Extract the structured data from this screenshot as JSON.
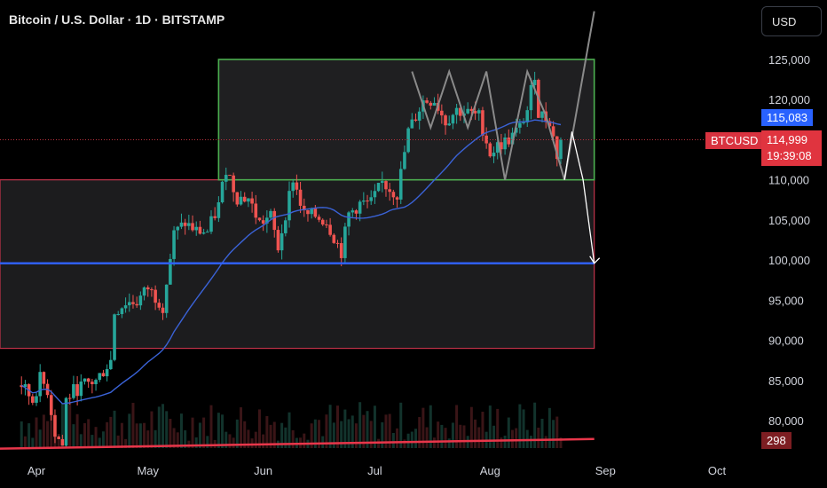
{
  "title": "Bitcoin / U.S. Dollar · 1D · BITSTAMP",
  "currency_button": "USD",
  "price_tags": {
    "ma_value": "115,083",
    "symbol": "BTCUSD",
    "last_price": "114,999",
    "countdown": "19:39:08",
    "volume": "298"
  },
  "colors": {
    "up": "#26a69a",
    "down": "#ef5350",
    "ma": "#3a62d6",
    "support_line": "#2f5ff5",
    "green_box": "#4caf50",
    "red_box": "#c2334a",
    "path": "#8a8a8a"
  },
  "chart_data": {
    "type": "candlestick",
    "title": "Bitcoin / U.S. Dollar · 1D · BITSTAMP",
    "y_ticks": [
      "125,000",
      "120,000",
      "115,000",
      "110,000",
      "105,000",
      "100,000",
      "95,000",
      "90,000",
      "85,000",
      "80,000"
    ],
    "x_ticks": [
      "Apr",
      "May",
      "Jun",
      "Jul",
      "Aug",
      "Sep",
      "Oct"
    ],
    "ylim": [
      76000,
      131000
    ],
    "last_price": 114999,
    "moving_average_last": 115083,
    "closes": [
      {
        "date": "2025-03-28",
        "close": 84400
      },
      {
        "date": "2025-03-31",
        "close": 82500
      },
      {
        "date": "2025-04-02",
        "close": 85200
      },
      {
        "date": "2025-04-04",
        "close": 83800
      },
      {
        "date": "2025-04-06",
        "close": 78500
      },
      {
        "date": "2025-04-08",
        "close": 76900
      },
      {
        "date": "2025-04-09",
        "close": 82600
      },
      {
        "date": "2025-04-11",
        "close": 83700
      },
      {
        "date": "2025-04-14",
        "close": 84500
      },
      {
        "date": "2025-04-17",
        "close": 84900
      },
      {
        "date": "2025-04-21",
        "close": 87500
      },
      {
        "date": "2025-04-22",
        "close": 93500
      },
      {
        "date": "2025-04-25",
        "close": 94700
      },
      {
        "date": "2025-04-28",
        "close": 94800
      },
      {
        "date": "2025-05-01",
        "close": 96500
      },
      {
        "date": "2025-05-05",
        "close": 94300
      },
      {
        "date": "2025-05-08",
        "close": 103200
      },
      {
        "date": "2025-05-11",
        "close": 104600
      },
      {
        "date": "2025-05-14",
        "close": 103600
      },
      {
        "date": "2025-05-17",
        "close": 103500
      },
      {
        "date": "2025-05-20",
        "close": 106800
      },
      {
        "date": "2025-05-22",
        "close": 111500
      },
      {
        "date": "2025-05-25",
        "close": 107800
      },
      {
        "date": "2025-05-28",
        "close": 107700
      },
      {
        "date": "2025-05-31",
        "close": 104600
      },
      {
        "date": "2025-06-03",
        "close": 105400
      },
      {
        "date": "2025-06-05",
        "close": 101500
      },
      {
        "date": "2025-06-09",
        "close": 110200
      },
      {
        "date": "2025-06-12",
        "close": 105600
      },
      {
        "date": "2025-06-15",
        "close": 105500
      },
      {
        "date": "2025-06-18",
        "close": 104800
      },
      {
        "date": "2025-06-22",
        "close": 101000
      },
      {
        "date": "2025-06-24",
        "close": 105700
      },
      {
        "date": "2025-06-27",
        "close": 107000
      },
      {
        "date": "2025-06-30",
        "close": 107100
      },
      {
        "date": "2025-07-03",
        "close": 109600
      },
      {
        "date": "2025-07-07",
        "close": 108200
      },
      {
        "date": "2025-07-10",
        "close": 116000
      },
      {
        "date": "2025-07-14",
        "close": 119800
      },
      {
        "date": "2025-07-17",
        "close": 120000
      },
      {
        "date": "2025-07-20",
        "close": 117300
      },
      {
        "date": "2025-07-23",
        "close": 118700
      },
      {
        "date": "2025-07-26",
        "close": 118300
      },
      {
        "date": "2025-07-29",
        "close": 117900
      },
      {
        "date": "2025-08-01",
        "close": 113300
      },
      {
        "date": "2025-08-03",
        "close": 114200
      },
      {
        "date": "2025-08-06",
        "close": 115000
      },
      {
        "date": "2025-08-09",
        "close": 116500
      },
      {
        "date": "2025-08-11",
        "close": 118700
      },
      {
        "date": "2025-08-13",
        "close": 123300
      },
      {
        "date": "2025-08-14",
        "close": 118300
      },
      {
        "date": "2025-08-17",
        "close": 117400
      },
      {
        "date": "2025-08-19",
        "close": 113000
      },
      {
        "date": "2025-08-20",
        "close": 114999
      }
    ],
    "annotations": {
      "green_box": {
        "from": "2025-05-20",
        "to": "2025-08-29",
        "y1": 110000,
        "y2": 125000
      },
      "red_box": {
        "from": "2025-03-15",
        "to": "2025-08-29",
        "y1": 89000,
        "y2": 110000
      },
      "support_line": {
        "y_start": 99600,
        "y_end": 99600
      },
      "bottom_line": {
        "y_start": 76500,
        "y_end": 77700
      },
      "projected_path": [
        [
          "2025-08-21",
          110000
        ],
        [
          "2025-08-23",
          116000
        ],
        [
          "2025-08-26",
          110000
        ],
        [
          "2025-08-29",
          99600
        ]
      ],
      "zigzag": [
        [
          "2025-07-11",
          123500
        ],
        [
          "2025-07-16",
          116500
        ],
        [
          "2025-07-21",
          123500
        ],
        [
          "2025-07-26",
          116500
        ],
        [
          "2025-07-31",
          123500
        ],
        [
          "2025-08-05",
          110000
        ],
        [
          "2025-08-11",
          123500
        ],
        [
          "2025-08-16",
          118000
        ],
        [
          "2025-08-21",
          110000
        ],
        [
          "2025-08-29",
          131000
        ]
      ]
    }
  }
}
